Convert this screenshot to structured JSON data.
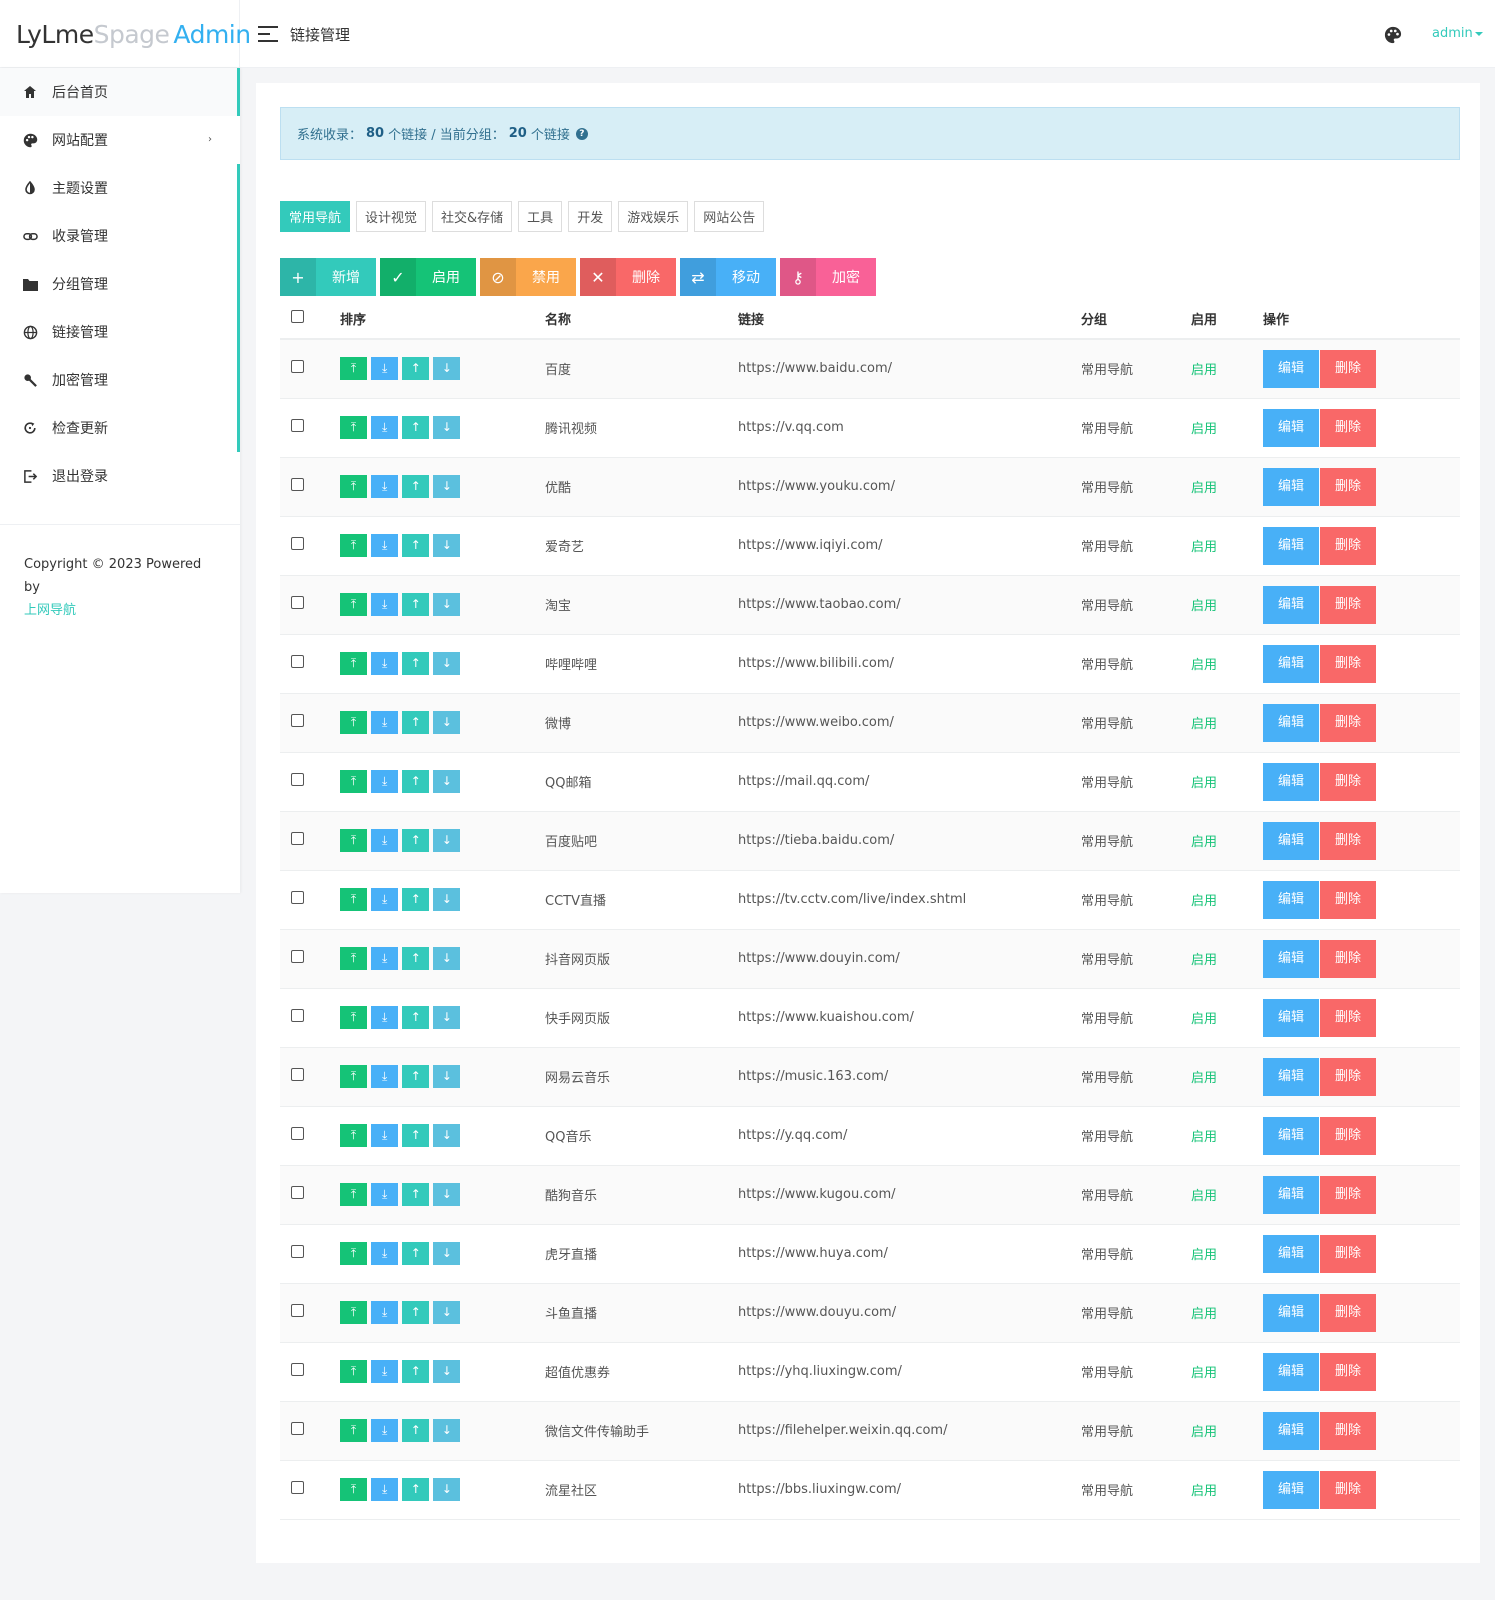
{
  "brand": {
    "part1": "LyLme",
    "part2": "Spage",
    "part3": "Admin"
  },
  "header": {
    "title": "链接管理",
    "user": "admin"
  },
  "sidebar": {
    "items": [
      {
        "label": "后台首页",
        "icon": "home-icon"
      },
      {
        "label": "网站配置",
        "icon": "palette-icon"
      },
      {
        "label": "主题设置",
        "icon": "contrast-icon"
      },
      {
        "label": "收录管理",
        "icon": "link-icon"
      },
      {
        "label": "分组管理",
        "icon": "folder-icon"
      },
      {
        "label": "链接管理",
        "icon": "globe-icon"
      },
      {
        "label": "加密管理",
        "icon": "key-icon"
      },
      {
        "label": "检查更新",
        "icon": "refresh-icon"
      },
      {
        "label": "退出登录",
        "icon": "logout-icon"
      }
    ],
    "expand_glyph": "›",
    "copyright": "Copyright © 2023 Powered by",
    "copyright_link": "上网导航"
  },
  "stats": {
    "prefix": "系统收录：",
    "total": "80",
    "mid": "个链接 / 当前分组：",
    "group_count": "20",
    "suffix": "个链接"
  },
  "tabs": [
    "常用导航",
    "设计视觉",
    "社交&存储",
    "工具",
    "开发",
    "游戏娱乐",
    "网站公告"
  ],
  "toolbar": [
    {
      "label": "新增",
      "icon": "plus-icon",
      "glyph": "+"
    },
    {
      "label": "启用",
      "icon": "check-icon",
      "glyph": "✓"
    },
    {
      "label": "禁用",
      "icon": "ban-icon",
      "glyph": "⊘"
    },
    {
      "label": "删除",
      "icon": "close-icon",
      "glyph": "✕"
    },
    {
      "label": "移动",
      "icon": "move-icon",
      "glyph": "⇄"
    },
    {
      "label": "加密",
      "icon": "key-icon",
      "glyph": "⚷"
    }
  ],
  "table": {
    "headers": [
      "排序",
      "名称",
      "链接",
      "分组",
      "启用",
      "操作"
    ],
    "sort_glyphs": [
      "⤒",
      "⤓",
      "↑",
      "↓"
    ],
    "edit_label": "编辑",
    "delete_label": "删除",
    "rows": [
      {
        "name": "百度",
        "url": "https://www.baidu.com/",
        "group": "常用导航",
        "status": "启用"
      },
      {
        "name": "腾讯视频",
        "url": "https://v.qq.com",
        "group": "常用导航",
        "status": "启用"
      },
      {
        "name": "优酷",
        "url": "https://www.youku.com/",
        "group": "常用导航",
        "status": "启用"
      },
      {
        "name": "爱奇艺",
        "url": "https://www.iqiyi.com/",
        "group": "常用导航",
        "status": "启用"
      },
      {
        "name": "淘宝",
        "url": "https://www.taobao.com/",
        "group": "常用导航",
        "status": "启用"
      },
      {
        "name": "哔哩哔哩",
        "url": "https://www.bilibili.com/",
        "group": "常用导航",
        "status": "启用"
      },
      {
        "name": "微博",
        "url": "https://www.weibo.com/",
        "group": "常用导航",
        "status": "启用"
      },
      {
        "name": "QQ邮箱",
        "url": "https://mail.qq.com/",
        "group": "常用导航",
        "status": "启用"
      },
      {
        "name": "百度贴吧",
        "url": "https://tieba.baidu.com/",
        "group": "常用导航",
        "status": "启用"
      },
      {
        "name": "CCTV直播",
        "url": "https://tv.cctv.com/live/index.shtml",
        "group": "常用导航",
        "status": "启用"
      },
      {
        "name": "抖音网页版",
        "url": "https://www.douyin.com/",
        "group": "常用导航",
        "status": "启用"
      },
      {
        "name": "快手网页版",
        "url": "https://www.kuaishou.com/",
        "group": "常用导航",
        "status": "启用"
      },
      {
        "name": "网易云音乐",
        "url": "https://music.163.com/",
        "group": "常用导航",
        "status": "启用"
      },
      {
        "name": "QQ音乐",
        "url": "https://y.qq.com/",
        "group": "常用导航",
        "status": "启用"
      },
      {
        "name": "酷狗音乐",
        "url": "https://www.kugou.com/",
        "group": "常用导航",
        "status": "启用"
      },
      {
        "name": "虎牙直播",
        "url": "https://www.huya.com/",
        "group": "常用导航",
        "status": "启用"
      },
      {
        "name": "斗鱼直播",
        "url": "https://www.douyu.com/",
        "group": "常用导航",
        "status": "启用"
      },
      {
        "name": "超值优惠券",
        "url": "https://yhq.liuxingw.com/",
        "group": "常用导航",
        "status": "启用"
      },
      {
        "name": "微信文件传输助手",
        "url": "https://filehelper.weixin.qq.com/",
        "group": "常用导航",
        "status": "启用"
      },
      {
        "name": "流星社区",
        "url": "https://bbs.liuxingw.com/",
        "group": "常用导航",
        "status": "启用"
      }
    ]
  }
}
